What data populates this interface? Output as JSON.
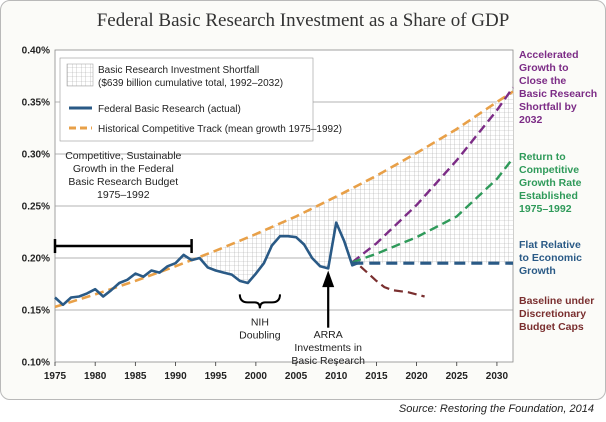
{
  "chart_data": {
    "type": "line",
    "title": "Federal Basic Research Investment as a Share of GDP",
    "xlim": [
      1975,
      2032
    ],
    "ylim": [
      0.1,
      0.4
    ],
    "x_ticks": [
      1975,
      1980,
      1985,
      1990,
      1995,
      2000,
      2005,
      2010,
      2015,
      2020,
      2025,
      2030
    ],
    "y_ticks": [
      {
        "value": 0.1,
        "label": "0.10%"
      },
      {
        "value": 0.15,
        "label": "0.15%"
      },
      {
        "value": 0.2,
        "label": "0.20%"
      },
      {
        "value": 0.25,
        "label": "0.25%"
      },
      {
        "value": 0.3,
        "label": "0.30%"
      },
      {
        "value": 0.35,
        "label": "0.35%"
      },
      {
        "value": 0.4,
        "label": "0.40%"
      }
    ],
    "grid": "horizontal",
    "legend_placement": "top-left",
    "legend": [
      {
        "key": "shortfall",
        "lines": [
          "Basic Research Investment Shortfall",
          "($639 billion cumulative total, 1992–2032)"
        ]
      },
      {
        "key": "actual",
        "lines": [
          "Federal Basic Research (actual)"
        ]
      },
      {
        "key": "historical",
        "lines": [
          "Historical Competitive Track (mean growth 1975–1992)"
        ]
      }
    ],
    "series": [
      {
        "key": "actual",
        "name": "Federal Basic Research (actual)",
        "color": "#2a5a86",
        "dash": "solid",
        "points": [
          [
            1975,
            0.162
          ],
          [
            1976,
            0.155
          ],
          [
            1977,
            0.162
          ],
          [
            1978,
            0.163
          ],
          [
            1979,
            0.166
          ],
          [
            1980,
            0.17
          ],
          [
            1981,
            0.163
          ],
          [
            1982,
            0.169
          ],
          [
            1983,
            0.176
          ],
          [
            1984,
            0.179
          ],
          [
            1985,
            0.185
          ],
          [
            1986,
            0.182
          ],
          [
            1987,
            0.188
          ],
          [
            1988,
            0.186
          ],
          [
            1989,
            0.192
          ],
          [
            1990,
            0.195
          ],
          [
            1991,
            0.203
          ],
          [
            1992,
            0.198
          ],
          [
            1993,
            0.2
          ],
          [
            1994,
            0.191
          ],
          [
            1995,
            0.188
          ],
          [
            1996,
            0.186
          ],
          [
            1997,
            0.184
          ],
          [
            1998,
            0.178
          ],
          [
            1999,
            0.176
          ],
          [
            2000,
            0.185
          ],
          [
            2001,
            0.195
          ],
          [
            2002,
            0.212
          ],
          [
            2003,
            0.221
          ],
          [
            2004,
            0.221
          ],
          [
            2005,
            0.22
          ],
          [
            2006,
            0.213
          ],
          [
            2007,
            0.2
          ],
          [
            2008,
            0.192
          ],
          [
            2009,
            0.19
          ],
          [
            2010,
            0.234
          ],
          [
            2011,
            0.216
          ],
          [
            2012,
            0.193
          ],
          [
            2013,
            0.196
          ]
        ]
      },
      {
        "key": "historical",
        "name": "Historical Competitive Track (mean growth 1975–1992)",
        "color": "#e8a048",
        "dash": "dashed",
        "points": [
          [
            1975,
            0.153
          ],
          [
            1980,
            0.165
          ],
          [
            1985,
            0.178
          ],
          [
            1990,
            0.192
          ],
          [
            1995,
            0.207
          ],
          [
            2000,
            0.223
          ],
          [
            2005,
            0.24
          ],
          [
            2010,
            0.259
          ],
          [
            2015,
            0.279
          ],
          [
            2020,
            0.301
          ],
          [
            2025,
            0.324
          ],
          [
            2030,
            0.35
          ],
          [
            2032,
            0.36
          ]
        ]
      },
      {
        "key": "accelerated",
        "name": "Accelerated Growth to Close the Basic Research Shortfall by 2032",
        "color": "#7c2c86",
        "dash": "dashed",
        "points": [
          [
            2012,
            0.196
          ],
          [
            2015,
            0.214
          ],
          [
            2020,
            0.251
          ],
          [
            2025,
            0.294
          ],
          [
            2030,
            0.342
          ],
          [
            2032,
            0.364
          ]
        ]
      },
      {
        "key": "return",
        "name": "Return to Competitive Growth Rate Established 1975–1992",
        "color": "#2f9a5a",
        "dash": "dashed",
        "points": [
          [
            2012,
            0.196
          ],
          [
            2015,
            0.204
          ],
          [
            2020,
            0.22
          ],
          [
            2025,
            0.24
          ],
          [
            2030,
            0.276
          ],
          [
            2032,
            0.296
          ]
        ]
      },
      {
        "key": "flat",
        "name": "Flat Relative to Economic Growth",
        "color": "#2a5a86",
        "dash": "dashed",
        "points": [
          [
            2012,
            0.195
          ],
          [
            2032,
            0.195
          ]
        ]
      },
      {
        "key": "baseline",
        "name": "Baseline under Discretionary Budget Caps",
        "color": "#7a2f2f",
        "dash": "dashed",
        "points": [
          [
            2013,
            0.192
          ],
          [
            2014,
            0.185
          ],
          [
            2015,
            0.178
          ],
          [
            2016,
            0.172
          ],
          [
            2017,
            0.169
          ],
          [
            2019,
            0.167
          ],
          [
            2021,
            0.163
          ]
        ]
      }
    ],
    "shortfall_region": {
      "from_year": 1992,
      "to_year": 2032,
      "upper": "historical",
      "lower": "actual then flat"
    },
    "annotations": [
      {
        "key": "competitive",
        "lines": [
          "Competitive, Sustainable",
          "Growth in the Federal",
          "Basic Research Budget",
          "1975–1992"
        ],
        "range": [
          1975,
          1992
        ]
      },
      {
        "key": "nih",
        "lines": [
          "NIH",
          "Doubling"
        ],
        "range": [
          1998,
          2003
        ]
      },
      {
        "key": "arra",
        "lines": [
          "ARRA",
          "Investments in",
          "Basic Research"
        ],
        "year": 2009
      }
    ],
    "right_labels": [
      {
        "key": "accelerated",
        "color": "#7c2c86",
        "lines": [
          "Accelerated",
          "Growth to",
          "Close the",
          "Basic Research",
          "Shortfall by",
          "2032"
        ]
      },
      {
        "key": "return",
        "color": "#2f9a5a",
        "lines": [
          "Return to",
          "Competitive",
          "Growth Rate",
          "Established",
          "1975–1992"
        ]
      },
      {
        "key": "flat",
        "color": "#2a5a86",
        "lines": [
          "Flat Relative",
          "to Economic",
          "Growth"
        ]
      },
      {
        "key": "baseline",
        "color": "#7a2f2f",
        "lines": [
          "Baseline under",
          "Discretionary",
          "Budget Caps"
        ]
      }
    ],
    "source": "Source: Restoring the Foundation, 2014"
  }
}
